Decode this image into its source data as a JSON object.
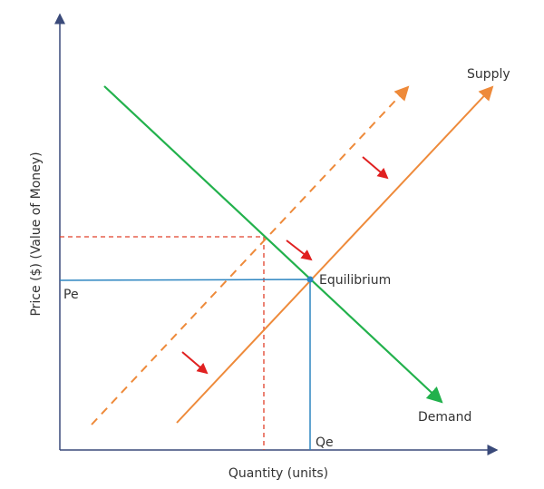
{
  "axes": {
    "y_label": "Price ($) (Value of Money)",
    "x_label": "Quantity (units)"
  },
  "curves": {
    "supply": "Supply",
    "demand": "Demand"
  },
  "points": {
    "equilibrium": "Equilibrium",
    "price": "Pe",
    "quantity": "Qe"
  }
}
